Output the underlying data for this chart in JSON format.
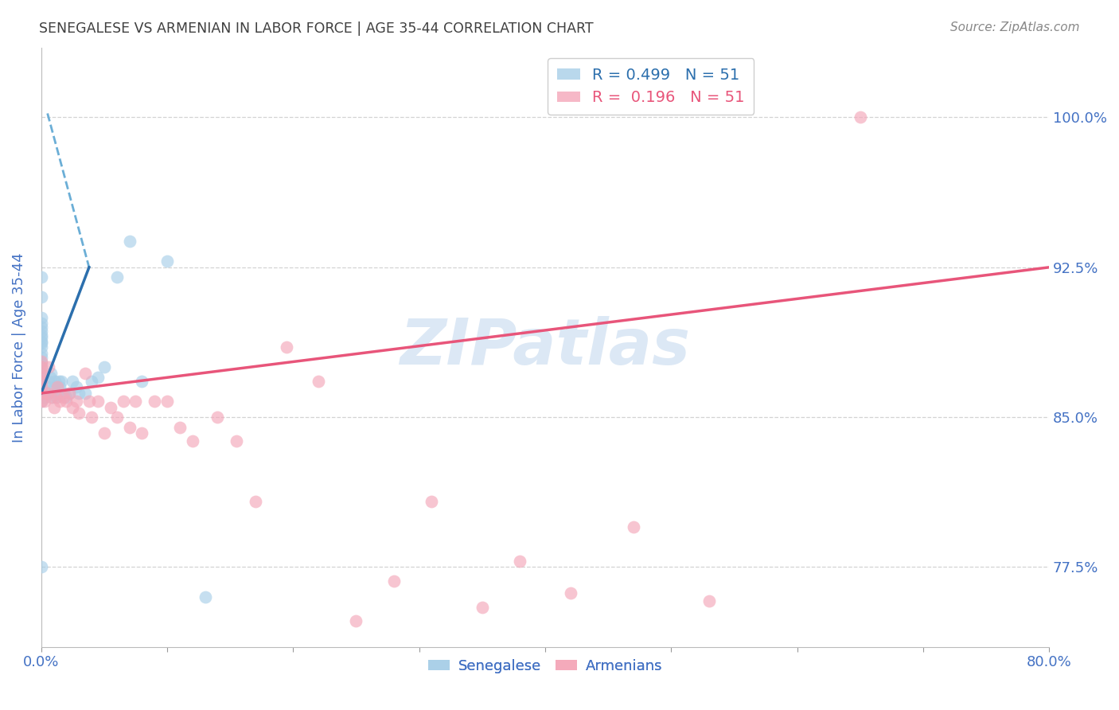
{
  "title": "SENEGALESE VS ARMENIAN IN LABOR FORCE | AGE 35-44 CORRELATION CHART",
  "source": "Source: ZipAtlas.com",
  "ylabel": "In Labor Force | Age 35-44",
  "y_tick_labels_right": [
    "77.5%",
    "85.0%",
    "92.5%",
    "100.0%"
  ],
  "xlim": [
    0.0,
    0.8
  ],
  "ylim": [
    0.735,
    1.035
  ],
  "yticks_right": [
    0.775,
    0.85,
    0.925,
    1.0
  ],
  "xticks": [
    0.0,
    0.1,
    0.2,
    0.3,
    0.4,
    0.5,
    0.6,
    0.7,
    0.8
  ],
  "x_tick_labels": [
    "0.0%",
    "",
    "",
    "",
    "",
    "",
    "",
    "",
    "80.0%"
  ],
  "legend_line1": "R = 0.499   N = 51",
  "legend_line2": "R =  0.196   N = 51",
  "blue_scatter_color": "#a8cfe8",
  "pink_scatter_color": "#f4a7b9",
  "blue_line_color": "#2c6fad",
  "blue_dash_color": "#6baed6",
  "pink_line_color": "#e8557a",
  "background_color": "#ffffff",
  "grid_color": "#c8c8c8",
  "axis_label_color": "#4472c4",
  "title_color": "#404040",
  "watermark_text": "ZIPatlas",
  "watermark_color": "#dce8f5",
  "senegalese_x": [
    0.0,
    0.0,
    0.0,
    0.0,
    0.0,
    0.0,
    0.0,
    0.0,
    0.0,
    0.0,
    0.0,
    0.0,
    0.0,
    0.0,
    0.0,
    0.0,
    0.0,
    0.0,
    0.0,
    0.0,
    0.003,
    0.004,
    0.005,
    0.006,
    0.007,
    0.008,
    0.009,
    0.01,
    0.011,
    0.012,
    0.013,
    0.014,
    0.015,
    0.016,
    0.018,
    0.02,
    0.022,
    0.025,
    0.028,
    0.03,
    0.035,
    0.04,
    0.045,
    0.05,
    0.06,
    0.07,
    0.08,
    0.1,
    0.13,
    0.0,
    0.0
  ],
  "senegalese_y": [
    0.858,
    0.862,
    0.865,
    0.868,
    0.87,
    0.872,
    0.875,
    0.877,
    0.88,
    0.882,
    0.885,
    0.887,
    0.888,
    0.89,
    0.891,
    0.893,
    0.895,
    0.897,
    0.9,
    0.91,
    0.86,
    0.862,
    0.865,
    0.868,
    0.87,
    0.872,
    0.86,
    0.865,
    0.868,
    0.86,
    0.862,
    0.868,
    0.865,
    0.868,
    0.862,
    0.86,
    0.862,
    0.868,
    0.865,
    0.862,
    0.862,
    0.868,
    0.87,
    0.875,
    0.92,
    0.938,
    0.868,
    0.928,
    0.76,
    0.92,
    0.775
  ],
  "armenian_x": [
    0.0,
    0.0,
    0.0,
    0.0,
    0.0,
    0.0,
    0.0,
    0.0,
    0.003,
    0.005,
    0.006,
    0.008,
    0.01,
    0.012,
    0.013,
    0.015,
    0.018,
    0.02,
    0.022,
    0.025,
    0.028,
    0.03,
    0.035,
    0.038,
    0.04,
    0.045,
    0.05,
    0.055,
    0.06,
    0.065,
    0.07,
    0.075,
    0.08,
    0.09,
    0.1,
    0.11,
    0.12,
    0.14,
    0.155,
    0.17,
    0.195,
    0.22,
    0.25,
    0.28,
    0.31,
    0.35,
    0.38,
    0.42,
    0.47,
    0.53,
    0.65
  ],
  "armenian_y": [
    0.858,
    0.862,
    0.865,
    0.868,
    0.87,
    0.872,
    0.875,
    0.878,
    0.858,
    0.862,
    0.875,
    0.86,
    0.855,
    0.86,
    0.865,
    0.858,
    0.86,
    0.858,
    0.862,
    0.855,
    0.858,
    0.852,
    0.872,
    0.858,
    0.85,
    0.858,
    0.842,
    0.855,
    0.85,
    0.858,
    0.845,
    0.858,
    0.842,
    0.858,
    0.858,
    0.845,
    0.838,
    0.85,
    0.838,
    0.808,
    0.885,
    0.868,
    0.748,
    0.768,
    0.808,
    0.755,
    0.778,
    0.762,
    0.795,
    0.758,
    1.0
  ],
  "blue_solid_trend_x": [
    0.0,
    0.038
  ],
  "blue_solid_trend_y": [
    0.862,
    0.925
  ],
  "blue_dash_trend_x": [
    0.005,
    0.038
  ],
  "blue_dash_trend_y": [
    1.002,
    0.925
  ],
  "pink_trend_x": [
    0.0,
    0.8
  ],
  "pink_trend_y": [
    0.862,
    0.925
  ]
}
